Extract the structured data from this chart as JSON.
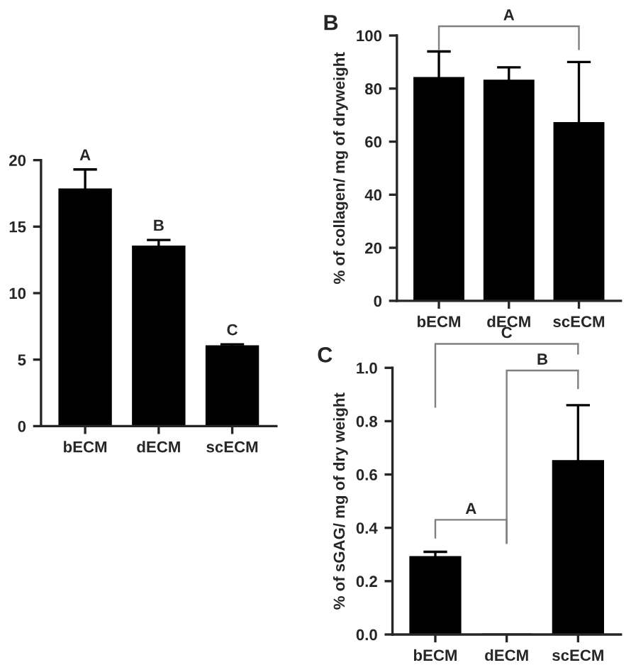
{
  "chart_data": [
    {
      "type": "bar",
      "categories": [
        "bECM",
        "dECM",
        "scECM"
      ],
      "values": [
        17.8,
        13.5,
        6.0
      ],
      "errors": [
        1.5,
        0.5,
        0.15
      ],
      "color": "#000000",
      "ylim": [
        0,
        20
      ],
      "yticks": [
        0,
        5,
        10,
        15,
        20
      ],
      "grid": false,
      "annotations": [
        "A",
        "B",
        "C"
      ]
    },
    {
      "type": "bar",
      "title": "B",
      "ylabel": "% of collagen/ mg of dryweight",
      "categories": [
        "bECM",
        "dECM",
        "scECM"
      ],
      "values": [
        84,
        83,
        67
      ],
      "errors": [
        10,
        5,
        23
      ],
      "color": "#000000",
      "ylim": [
        0,
        100
      ],
      "yticks": [
        0,
        20,
        40,
        60,
        80,
        100
      ],
      "grid": false,
      "annotations": [
        "A"
      ]
    },
    {
      "type": "bar",
      "title": "C",
      "ylabel": "% of sGAG/ mg of dry weight",
      "categories": [
        "bECM",
        "dECM",
        "scECM"
      ],
      "values": [
        0.29,
        0,
        0.65
      ],
      "errors": [
        0.02,
        null,
        0.21
      ],
      "color": "#000000",
      "ylim": [
        0,
        1.0
      ],
      "yticks": [
        {
          "value": 0,
          "label": "0.0"
        },
        {
          "value": 0.2,
          "label": "0.2"
        },
        {
          "value": 0.4,
          "label": "0.4"
        },
        {
          "value": 0.6,
          "label": "0.6"
        },
        {
          "value": 0.8,
          "label": "0.8"
        },
        {
          "value": 1.0,
          "label": "1.0"
        }
      ],
      "grid": false,
      "annotations": [
        "A",
        "B",
        "C"
      ]
    }
  ]
}
